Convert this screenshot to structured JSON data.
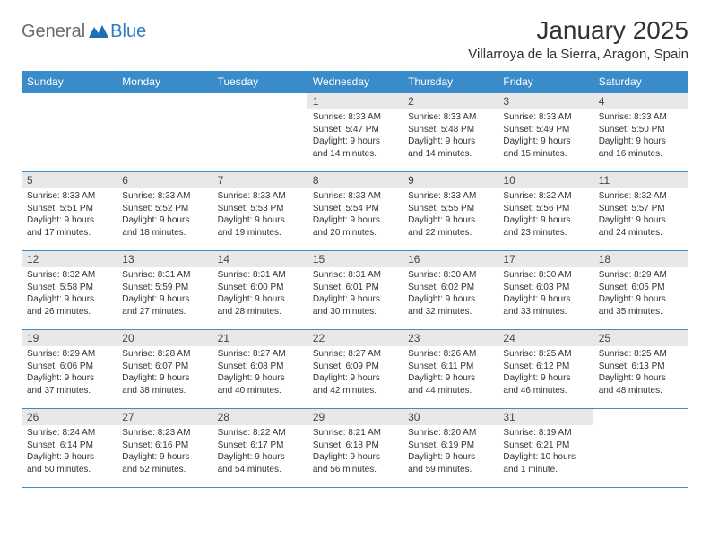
{
  "logo": {
    "text1": "General",
    "text2": "Blue"
  },
  "title": "January 2025",
  "location": "Villarroya de la Sierra, Aragon, Spain",
  "colors": {
    "header_bg": "#3a8bc9",
    "header_text": "#ffffff",
    "daynum_bg": "#e8e8e8",
    "border": "#3a8bc9",
    "logo_gray": "#6b6b6b",
    "logo_blue": "#2f7bbf"
  },
  "weekdays": [
    "Sunday",
    "Monday",
    "Tuesday",
    "Wednesday",
    "Thursday",
    "Friday",
    "Saturday"
  ],
  "weeks": [
    [
      {
        "n": "",
        "lines": []
      },
      {
        "n": "",
        "lines": []
      },
      {
        "n": "",
        "lines": []
      },
      {
        "n": "1",
        "lines": [
          "Sunrise: 8:33 AM",
          "Sunset: 5:47 PM",
          "Daylight: 9 hours",
          "and 14 minutes."
        ]
      },
      {
        "n": "2",
        "lines": [
          "Sunrise: 8:33 AM",
          "Sunset: 5:48 PM",
          "Daylight: 9 hours",
          "and 14 minutes."
        ]
      },
      {
        "n": "3",
        "lines": [
          "Sunrise: 8:33 AM",
          "Sunset: 5:49 PM",
          "Daylight: 9 hours",
          "and 15 minutes."
        ]
      },
      {
        "n": "4",
        "lines": [
          "Sunrise: 8:33 AM",
          "Sunset: 5:50 PM",
          "Daylight: 9 hours",
          "and 16 minutes."
        ]
      }
    ],
    [
      {
        "n": "5",
        "lines": [
          "Sunrise: 8:33 AM",
          "Sunset: 5:51 PM",
          "Daylight: 9 hours",
          "and 17 minutes."
        ]
      },
      {
        "n": "6",
        "lines": [
          "Sunrise: 8:33 AM",
          "Sunset: 5:52 PM",
          "Daylight: 9 hours",
          "and 18 minutes."
        ]
      },
      {
        "n": "7",
        "lines": [
          "Sunrise: 8:33 AM",
          "Sunset: 5:53 PM",
          "Daylight: 9 hours",
          "and 19 minutes."
        ]
      },
      {
        "n": "8",
        "lines": [
          "Sunrise: 8:33 AM",
          "Sunset: 5:54 PM",
          "Daylight: 9 hours",
          "and 20 minutes."
        ]
      },
      {
        "n": "9",
        "lines": [
          "Sunrise: 8:33 AM",
          "Sunset: 5:55 PM",
          "Daylight: 9 hours",
          "and 22 minutes."
        ]
      },
      {
        "n": "10",
        "lines": [
          "Sunrise: 8:32 AM",
          "Sunset: 5:56 PM",
          "Daylight: 9 hours",
          "and 23 minutes."
        ]
      },
      {
        "n": "11",
        "lines": [
          "Sunrise: 8:32 AM",
          "Sunset: 5:57 PM",
          "Daylight: 9 hours",
          "and 24 minutes."
        ]
      }
    ],
    [
      {
        "n": "12",
        "lines": [
          "Sunrise: 8:32 AM",
          "Sunset: 5:58 PM",
          "Daylight: 9 hours",
          "and 26 minutes."
        ]
      },
      {
        "n": "13",
        "lines": [
          "Sunrise: 8:31 AM",
          "Sunset: 5:59 PM",
          "Daylight: 9 hours",
          "and 27 minutes."
        ]
      },
      {
        "n": "14",
        "lines": [
          "Sunrise: 8:31 AM",
          "Sunset: 6:00 PM",
          "Daylight: 9 hours",
          "and 28 minutes."
        ]
      },
      {
        "n": "15",
        "lines": [
          "Sunrise: 8:31 AM",
          "Sunset: 6:01 PM",
          "Daylight: 9 hours",
          "and 30 minutes."
        ]
      },
      {
        "n": "16",
        "lines": [
          "Sunrise: 8:30 AM",
          "Sunset: 6:02 PM",
          "Daylight: 9 hours",
          "and 32 minutes."
        ]
      },
      {
        "n": "17",
        "lines": [
          "Sunrise: 8:30 AM",
          "Sunset: 6:03 PM",
          "Daylight: 9 hours",
          "and 33 minutes."
        ]
      },
      {
        "n": "18",
        "lines": [
          "Sunrise: 8:29 AM",
          "Sunset: 6:05 PM",
          "Daylight: 9 hours",
          "and 35 minutes."
        ]
      }
    ],
    [
      {
        "n": "19",
        "lines": [
          "Sunrise: 8:29 AM",
          "Sunset: 6:06 PM",
          "Daylight: 9 hours",
          "and 37 minutes."
        ]
      },
      {
        "n": "20",
        "lines": [
          "Sunrise: 8:28 AM",
          "Sunset: 6:07 PM",
          "Daylight: 9 hours",
          "and 38 minutes."
        ]
      },
      {
        "n": "21",
        "lines": [
          "Sunrise: 8:27 AM",
          "Sunset: 6:08 PM",
          "Daylight: 9 hours",
          "and 40 minutes."
        ]
      },
      {
        "n": "22",
        "lines": [
          "Sunrise: 8:27 AM",
          "Sunset: 6:09 PM",
          "Daylight: 9 hours",
          "and 42 minutes."
        ]
      },
      {
        "n": "23",
        "lines": [
          "Sunrise: 8:26 AM",
          "Sunset: 6:11 PM",
          "Daylight: 9 hours",
          "and 44 minutes."
        ]
      },
      {
        "n": "24",
        "lines": [
          "Sunrise: 8:25 AM",
          "Sunset: 6:12 PM",
          "Daylight: 9 hours",
          "and 46 minutes."
        ]
      },
      {
        "n": "25",
        "lines": [
          "Sunrise: 8:25 AM",
          "Sunset: 6:13 PM",
          "Daylight: 9 hours",
          "and 48 minutes."
        ]
      }
    ],
    [
      {
        "n": "26",
        "lines": [
          "Sunrise: 8:24 AM",
          "Sunset: 6:14 PM",
          "Daylight: 9 hours",
          "and 50 minutes."
        ]
      },
      {
        "n": "27",
        "lines": [
          "Sunrise: 8:23 AM",
          "Sunset: 6:16 PM",
          "Daylight: 9 hours",
          "and 52 minutes."
        ]
      },
      {
        "n": "28",
        "lines": [
          "Sunrise: 8:22 AM",
          "Sunset: 6:17 PM",
          "Daylight: 9 hours",
          "and 54 minutes."
        ]
      },
      {
        "n": "29",
        "lines": [
          "Sunrise: 8:21 AM",
          "Sunset: 6:18 PM",
          "Daylight: 9 hours",
          "and 56 minutes."
        ]
      },
      {
        "n": "30",
        "lines": [
          "Sunrise: 8:20 AM",
          "Sunset: 6:19 PM",
          "Daylight: 9 hours",
          "and 59 minutes."
        ]
      },
      {
        "n": "31",
        "lines": [
          "Sunrise: 8:19 AM",
          "Sunset: 6:21 PM",
          "Daylight: 10 hours",
          "and 1 minute."
        ]
      },
      {
        "n": "",
        "lines": []
      }
    ]
  ]
}
